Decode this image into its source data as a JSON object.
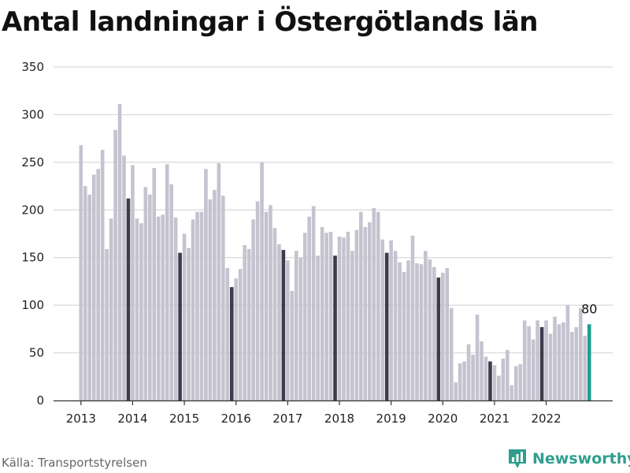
{
  "title": "Antal landningar i Östergötlands län",
  "source": "Källa: Transportstyrelsen",
  "brand": {
    "name": "Newsworthy",
    "icon": "newsworthy-logo-icon"
  },
  "colors": {
    "bar": "#c4c3cf",
    "january": "#3d3b4c",
    "highlight": "#1f9e8f",
    "grid": "#d9d9d9"
  },
  "chart_data": {
    "type": "bar",
    "title": "Antal landningar i Östergötlands län",
    "xlabel": "",
    "ylabel": "",
    "ylim": [
      0,
      350
    ],
    "yticks": [
      "0",
      "50",
      "100",
      "150",
      "200",
      "250",
      "300",
      "350"
    ],
    "xticks": [
      "2013",
      "2014",
      "2015",
      "2016",
      "2017",
      "2018",
      "2019",
      "2020",
      "2021",
      "2022"
    ],
    "grid": true,
    "start_month": "2013-01",
    "end_month": "2022-11",
    "highlight_label": "80",
    "values": [
      268,
      225,
      216,
      237,
      243,
      263,
      159,
      191,
      284,
      311,
      257,
      212,
      247,
      191,
      186,
      224,
      216,
      244,
      193,
      195,
      248,
      227,
      192,
      155,
      175,
      160,
      190,
      198,
      198,
      243,
      211,
      221,
      249,
      215,
      139,
      119,
      128,
      138,
      163,
      159,
      190,
      209,
      250,
      198,
      205,
      181,
      164,
      158,
      147,
      115,
      157,
      150,
      176,
      193,
      204,
      152,
      182,
      176,
      177,
      152,
      172,
      171,
      177,
      157,
      179,
      198,
      182,
      187,
      202,
      198,
      169,
      155,
      168,
      157,
      145,
      135,
      147,
      173,
      144,
      143,
      157,
      148,
      140,
      129,
      134,
      139,
      97,
      19,
      39,
      41,
      59,
      48,
      90,
      62,
      46,
      41,
      37,
      26,
      44,
      53,
      16,
      36,
      38,
      84,
      78,
      64,
      84,
      77,
      84,
      70,
      88,
      80,
      82,
      100,
      72,
      77,
      97,
      68,
      80
    ]
  }
}
